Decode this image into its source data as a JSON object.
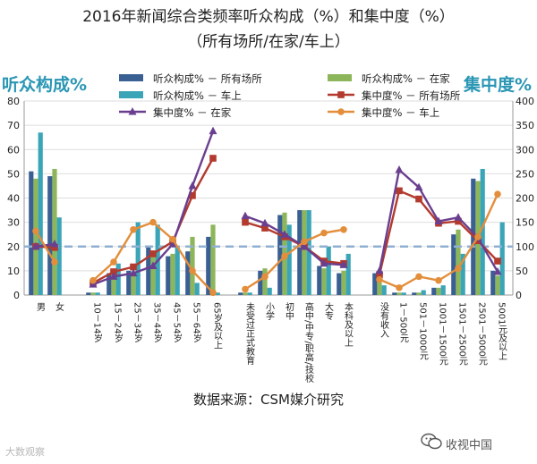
{
  "title_line1": "2016年新闻综合类频率听众构成（%）和集中度（%）",
  "title_line2": "（所有场所/在家/车上）",
  "left_axis_title": "听众构成%",
  "right_axis_title": "集中度%",
  "source": "数据来源：CSM媒介研究",
  "watermark_left": "大数观察",
  "watermark_right": "收视中国",
  "colors": {
    "bar_all": "#3a5f93",
    "bar_home": "#8db65b",
    "bar_car": "#3ba5b8",
    "line_all": "#b33a2e",
    "line_home": "#6a3f8f",
    "line_car": "#e38e3b",
    "ref_line": "#8fb0d2",
    "axis_title": "#2a96b4"
  },
  "chart_data": {
    "type": "bar",
    "title": "2016年新闻综合类频率听众构成（%）和集中度（%）（所有场所/在家/车上）",
    "ylabel_left": "听众构成%",
    "ylabel_right": "集中度%",
    "ylim_left": [
      0,
      80
    ],
    "ylim_right": [
      0,
      400
    ],
    "yticks_left": [
      "0",
      "10",
      "20",
      "30",
      "40",
      "50",
      "60",
      "70",
      "80"
    ],
    "yticks_right": [
      "0",
      "50",
      "100",
      "150",
      "200",
      "250",
      "300",
      "350",
      "400"
    ],
    "reference_line_right": 100,
    "legend_position": "top-center",
    "groups": [
      {
        "name": "gender",
        "categories": [
          "男",
          "女"
        ]
      },
      {
        "name": "age",
        "categories": [
          "10－14岁",
          "15－24岁",
          "25－34岁",
          "35－44岁",
          "45－54岁",
          "55－64岁",
          "65岁及以上"
        ]
      },
      {
        "name": "education",
        "categories": [
          "未受过正式教育",
          "小学",
          "初中",
          "高中/中专/职高/技校",
          "大专",
          "本科及以上"
        ]
      },
      {
        "name": "income",
        "categories": [
          "没有收入",
          "1－500元",
          "501－1000元",
          "1001－1500元",
          "1501－2500元",
          "2501－5000元",
          "5001元及以上"
        ]
      }
    ],
    "categories": [
      "男",
      "女",
      "10－14岁",
      "15－24岁",
      "25－34岁",
      "35－44岁",
      "45－54岁",
      "55－64岁",
      "65岁及以上",
      "未受过正式教育",
      "小学",
      "初中",
      "高中/中专/职高/技校",
      "大专",
      "本科及以上",
      "没有收入",
      "1－500元",
      "501－1000元",
      "1001－1500元",
      "1501－2500元",
      "2501－5000元",
      "5001元及以上"
    ],
    "bar_series": [
      {
        "name": "听众构成% － 所有场所",
        "color_key": "bar_all",
        "values": [
          51,
          49,
          1,
          9,
          10,
          20,
          16,
          18,
          24,
          1,
          10,
          33,
          35,
          12,
          9,
          9,
          1,
          1,
          3,
          25,
          48,
          10
        ]
      },
      {
        "name": "听众构成% － 在家",
        "color_key": "bar_home",
        "values": [
          48,
          52,
          1,
          8,
          9,
          18,
          17,
          24,
          29,
          1,
          11,
          34,
          35,
          11,
          10,
          9,
          1,
          1,
          3,
          27,
          47,
          8
        ]
      },
      {
        "name": "听众构成% － 车上",
        "color_key": "bar_car",
        "values": [
          67,
          32,
          1,
          13,
          30,
          29,
          20,
          5,
          1,
          1,
          3,
          29,
          35,
          20,
          17,
          4,
          1,
          2,
          4,
          17,
          52,
          30
        ]
      }
    ],
    "line_series": [
      {
        "name": "集中度% － 所有场所",
        "color_key": "line_all",
        "marker": "square",
        "segments": [
          {
            "group": "gender",
            "values": [
              100,
              98
            ]
          },
          {
            "group": "age",
            "values": [
              25,
              48,
              58,
              85,
              110,
              205,
              282
            ]
          },
          {
            "group": "education",
            "values": [
              150,
              138,
              120,
              100,
              70,
              65
            ]
          },
          {
            "group": "income",
            "values": [
              42,
              215,
              198,
              148,
              152,
              112,
              70
            ]
          }
        ]
      },
      {
        "name": "集中度% － 在家",
        "color_key": "line_home",
        "marker": "triangle",
        "segments": [
          {
            "group": "gender",
            "values": [
              100,
              105
            ]
          },
          {
            "group": "age",
            "values": [
              22,
              38,
              45,
              60,
              105,
              225,
              338
            ]
          },
          {
            "group": "education",
            "values": [
              163,
              148,
              125,
              100,
              65,
              62
            ]
          },
          {
            "group": "income",
            "values": [
              50,
              258,
              222,
              152,
              160,
              118,
              48
            ]
          }
        ]
      },
      {
        "name": "集中度% － 车上",
        "color_key": "line_car",
        "marker": "circle",
        "segments": [
          {
            "group": "gender",
            "values": [
              132,
              68
            ]
          },
          {
            "group": "age",
            "values": [
              30,
              68,
              135,
              150,
              115,
              50,
              5
            ]
          },
          {
            "group": "education",
            "values": [
              12,
              38,
              80,
              110,
              128,
              135
            ]
          },
          {
            "group": "income",
            "values": [
              32,
              15,
              38,
              30,
              55,
              120,
              208
            ]
          }
        ]
      }
    ]
  }
}
